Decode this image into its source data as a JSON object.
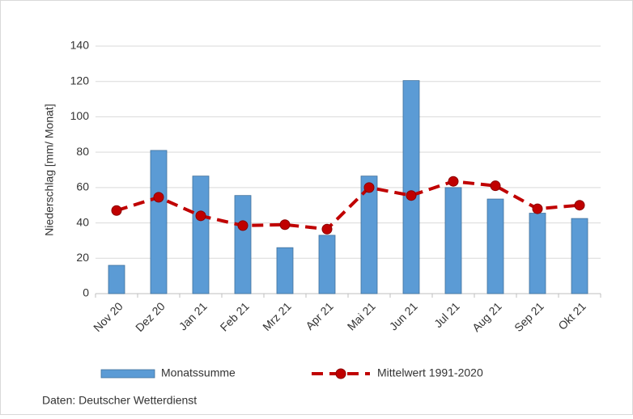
{
  "chart_data": {
    "type": "bar",
    "ylabel": "Niederschlag  [mm/ Monat]",
    "categories": [
      "Nov 20",
      "Dez 20",
      "Jan 21",
      "Feb 21",
      "Mrz 21",
      "Apr 21",
      "Mai 21",
      "Jun 21",
      "Jul 21",
      "Aug 21",
      "Sep 21",
      "Okt 21"
    ],
    "series": [
      {
        "name": "Monatssumme",
        "type": "bar",
        "color": "#5b9bd5",
        "values": [
          16,
          81,
          66.5,
          55.5,
          26,
          33,
          66.5,
          120.5,
          60,
          53.5,
          45.5,
          42.5
        ]
      },
      {
        "name": "Mittelwert 1991-2020",
        "type": "line",
        "color": "#c00000",
        "values": [
          47,
          54.5,
          44,
          38.5,
          39,
          36.5,
          60,
          55.5,
          63.5,
          61,
          48,
          50
        ]
      }
    ],
    "ylim": [
      0,
      140
    ],
    "yticks": [
      0,
      20,
      40,
      60,
      80,
      100,
      120,
      140
    ],
    "grid": true,
    "source": "Daten: Deutscher Wetterdienst"
  }
}
